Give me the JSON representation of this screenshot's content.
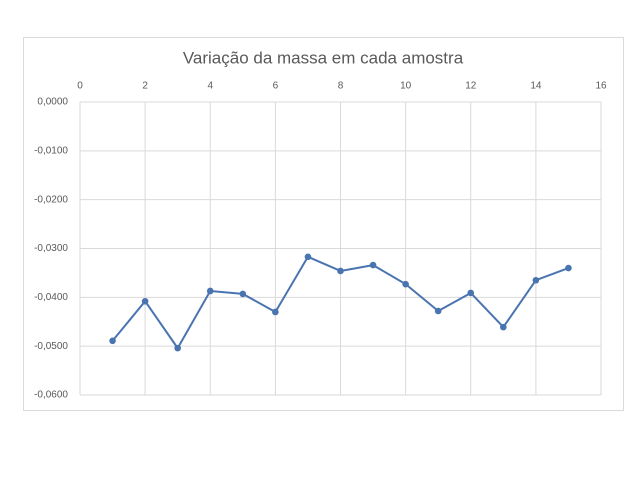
{
  "chart_data": {
    "type": "line",
    "title": "Variação da massa em cada amostra",
    "x": [
      1,
      2,
      3,
      4,
      5,
      6,
      7,
      8,
      9,
      10,
      11,
      12,
      13,
      14,
      15
    ],
    "values": [
      -0.0489,
      -0.0408,
      -0.0504,
      -0.0387,
      -0.0393,
      -0.043,
      -0.0317,
      -0.0346,
      -0.0334,
      -0.0373,
      -0.0428,
      -0.0391,
      -0.0461,
      -0.0365,
      -0.034
    ],
    "color": "#4a74b0",
    "xlim": [
      0,
      16
    ],
    "xticks": [
      0,
      2,
      4,
      6,
      8,
      10,
      12,
      14,
      16
    ],
    "ylim": [
      -0.06,
      0
    ],
    "yticks": [
      {
        "value": 0,
        "label": "0,0000"
      },
      {
        "value": -0.01,
        "label": "-0,0100"
      },
      {
        "value": -0.02,
        "label": "-0,0200"
      },
      {
        "value": -0.03,
        "label": "-0,0300"
      },
      {
        "value": -0.04,
        "label": "-0,0400"
      },
      {
        "value": -0.05,
        "label": "-0,0500"
      },
      {
        "value": -0.06,
        "label": "-0,0600"
      }
    ],
    "grid": true
  }
}
